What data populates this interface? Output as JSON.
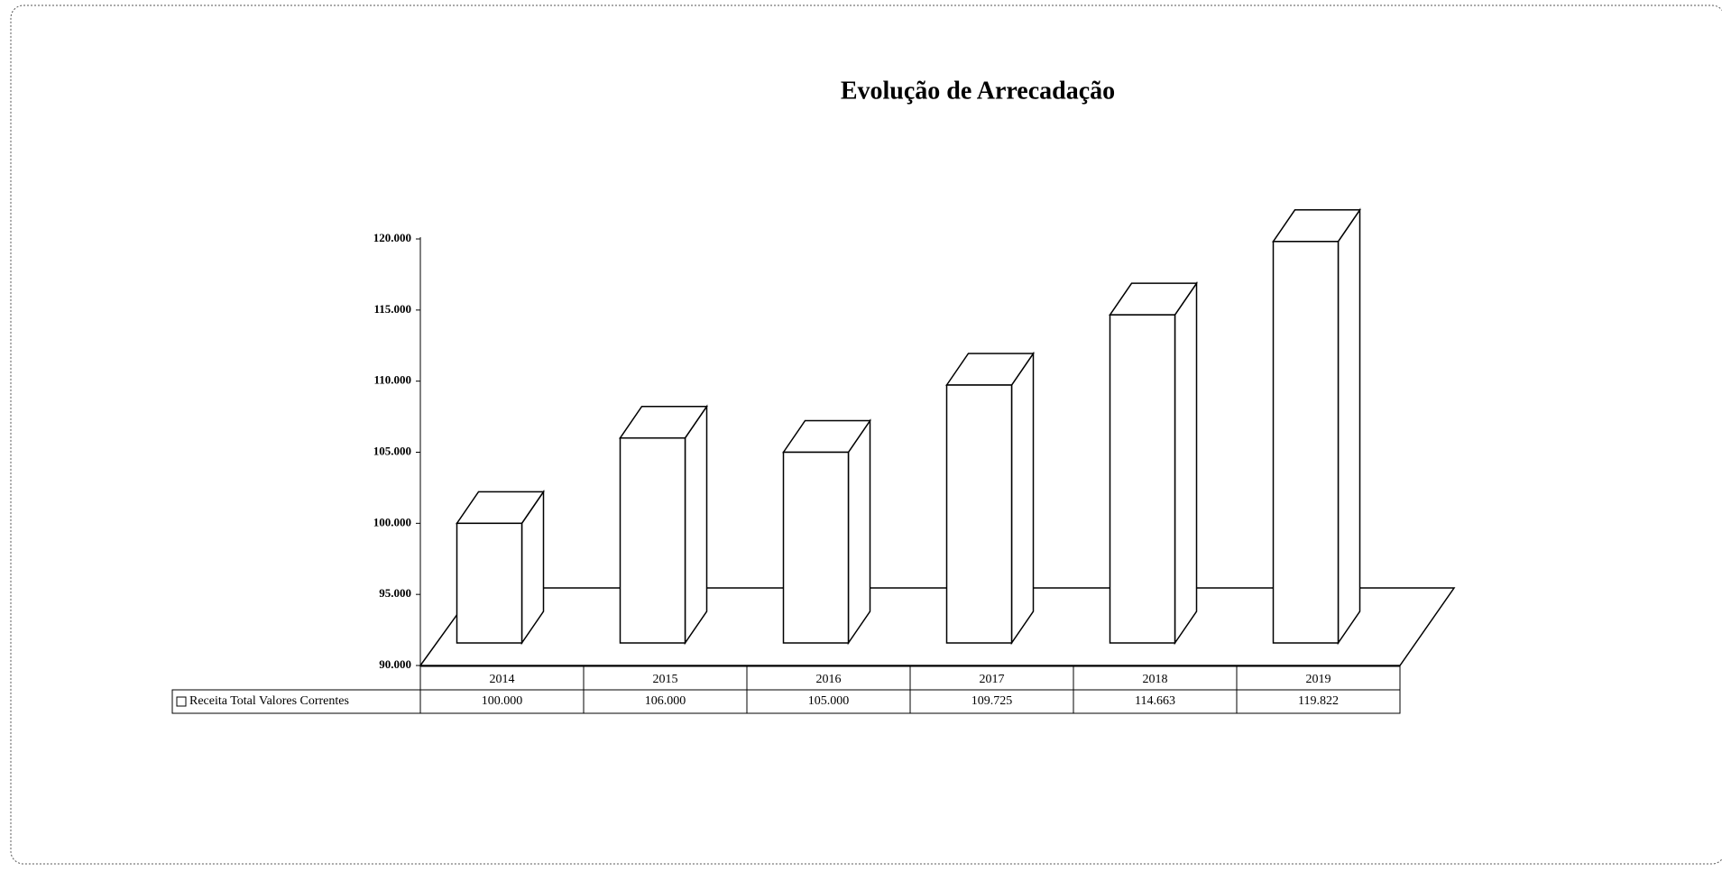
{
  "chart_data": {
    "type": "bar3d",
    "title": "Evolução de Arrecadação",
    "categories": [
      "2014",
      "2015",
      "2016",
      "2017",
      "2018",
      "2019"
    ],
    "series": [
      {
        "name": "Receita Total Valores Correntes",
        "color": "#ffffff",
        "values": [
          100000,
          106000,
          105000,
          109725,
          114663,
          119822
        ],
        "value_labels": [
          "100.000",
          "106.000",
          "105.000",
          "109.725",
          "114.663",
          "119.822"
        ]
      }
    ],
    "ylim": [
      90000,
      120000
    ],
    "yticks": [
      {
        "value": 90000,
        "label": "90.000"
      },
      {
        "value": 95000,
        "label": "95.000"
      },
      {
        "value": 100000,
        "label": "100.000"
      },
      {
        "value": 105000,
        "label": "105.000"
      },
      {
        "value": 110000,
        "label": "110.000"
      },
      {
        "value": 115000,
        "label": "115.000"
      },
      {
        "value": 120000,
        "label": "120.000"
      }
    ],
    "grid": false
  }
}
